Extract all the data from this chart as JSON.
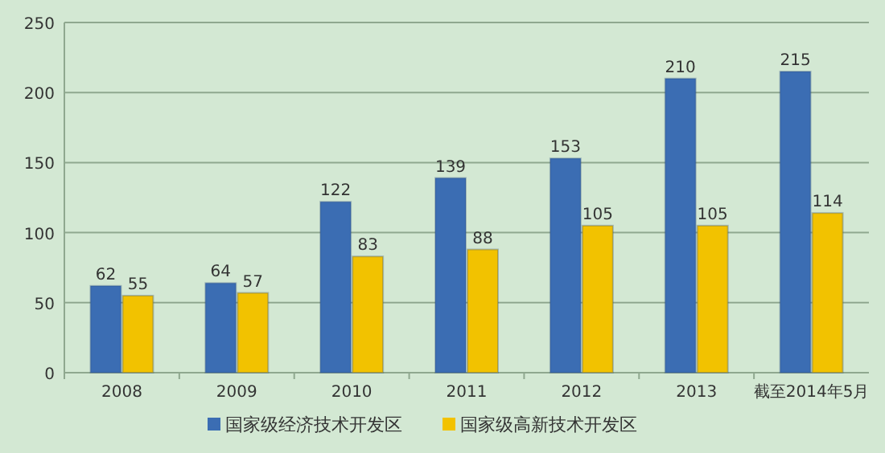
{
  "chart_data": {
    "type": "bar",
    "categories": [
      "2008",
      "2009",
      "2010",
      "2011",
      "2012",
      "2013",
      "截至2014年5月"
    ],
    "series": [
      {
        "name": "国家级经济技术开发区",
        "color": "#3b6db3",
        "values": [
          62,
          64,
          122,
          139,
          153,
          210,
          215
        ]
      },
      {
        "name": "国家级高新技术开发区",
        "color": "#f2c200",
        "values": [
          55,
          57,
          83,
          88,
          105,
          105,
          114
        ]
      }
    ],
    "ylim": [
      0,
      250
    ],
    "yticks": [
      0,
      50,
      100,
      150,
      200,
      250
    ],
    "grid": "y",
    "legend": "bottom",
    "data_labels": true
  }
}
